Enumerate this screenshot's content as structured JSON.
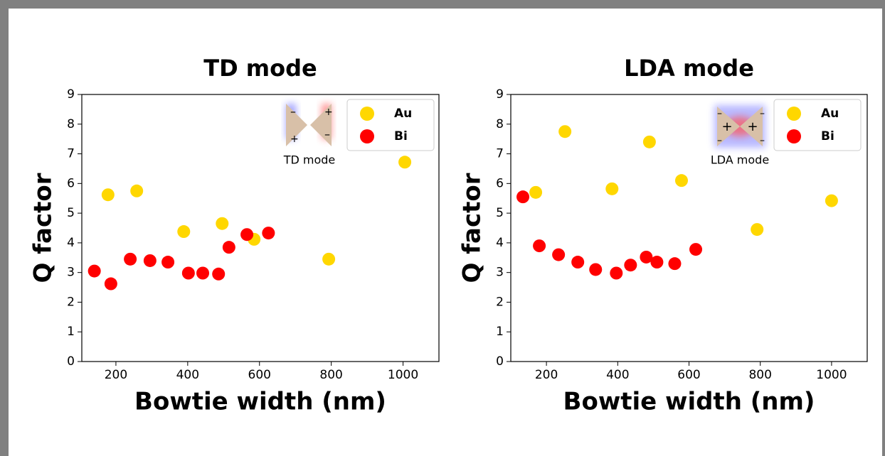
{
  "chart_data": [
    {
      "type": "scatter",
      "title": "TD mode",
      "x_label": "Bowtie width (nm)",
      "y_label": "Q factor",
      "annotation": "TD mode",
      "xlim": [
        105,
        1100
      ],
      "ylim": [
        0,
        9
      ],
      "xticks": [
        200,
        400,
        600,
        800,
        1000
      ],
      "yticks": [
        0,
        1,
        2,
        3,
        4,
        5,
        6,
        7,
        8,
        9
      ],
      "legend": "upper right",
      "series": [
        {
          "name": "Au",
          "color": "#ffd700",
          "x": [
            178,
            258,
            389,
            496,
            585,
            793,
            1005
          ],
          "values": [
            5.62,
            5.75,
            4.38,
            4.65,
            4.12,
            3.45,
            6.72
          ]
        },
        {
          "name": "Bi",
          "color": "#ff0000",
          "x": [
            140,
            186,
            240,
            295,
            345,
            402,
            442,
            486,
            515,
            565,
            625
          ],
          "values": [
            3.05,
            2.62,
            3.45,
            3.4,
            3.35,
            2.98,
            2.98,
            2.95,
            3.85,
            4.28,
            4.33
          ]
        }
      ]
    },
    {
      "type": "scatter",
      "title": "LDA mode",
      "x_label": "Bowtie width (nm)",
      "y_label": "Q factor",
      "annotation": "LDA mode",
      "xlim": [
        100,
        1100
      ],
      "ylim": [
        0,
        9
      ],
      "xticks": [
        200,
        400,
        600,
        800,
        1000
      ],
      "yticks": [
        0,
        1,
        2,
        3,
        4,
        5,
        6,
        7,
        8,
        9
      ],
      "legend": "upper right",
      "series": [
        {
          "name": "Au",
          "color": "#ffd700",
          "x": [
            170,
            252,
            384,
            489,
            579,
            791,
            1000
          ],
          "values": [
            5.7,
            7.75,
            5.82,
            7.4,
            6.1,
            4.45,
            5.42
          ]
        },
        {
          "name": "Bi",
          "color": "#ff0000",
          "x": [
            134,
            180,
            234,
            288,
            338,
            396,
            436,
            480,
            510,
            560,
            619
          ],
          "values": [
            5.55,
            3.9,
            3.6,
            3.35,
            3.1,
            2.98,
            3.25,
            3.52,
            3.35,
            3.3,
            3.78
          ]
        }
      ]
    }
  ]
}
